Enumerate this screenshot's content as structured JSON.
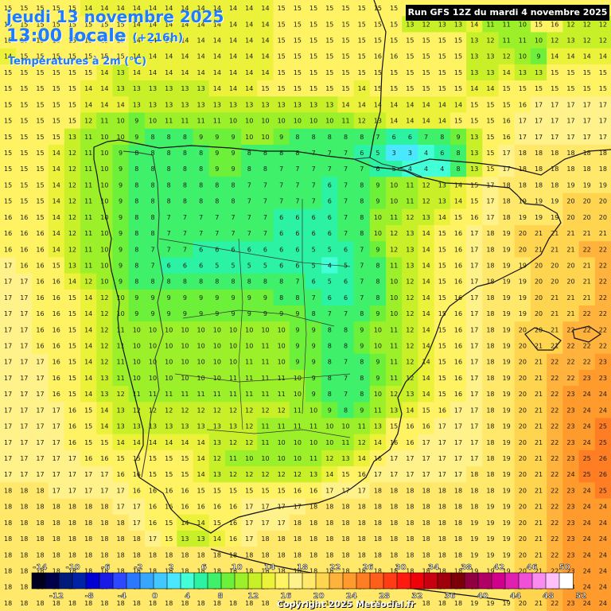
{
  "header": {
    "date": "jeudi 13 novembre 2025",
    "time": "13:00 locale",
    "lead": "(+216h)",
    "parameter": "Températures à 2m (°C)",
    "run": "Run GFS 12Z du mardi 4 novembre 2025"
  },
  "footer": {
    "copyright": "Copyright 2025 Meteociel.fr"
  },
  "legend": {
    "top_labels": [
      "-14",
      "-10",
      "-6",
      "-2",
      "2",
      "6",
      "10",
      "14",
      "18",
      "22",
      "26",
      "30",
      "34",
      "38",
      "42",
      "46",
      "50"
    ],
    "bottom_labels": [
      "-12",
      "-8",
      "-4",
      "0",
      "4",
      "8",
      "12",
      "16",
      "20",
      "24",
      "28",
      "32",
      "36",
      "40",
      "44",
      "48",
      "52"
    ],
    "colors": [
      "#00001e",
      "#00004a",
      "#001b7a",
      "#0022a6",
      "#0000d2",
      "#1a1ae6",
      "#2e48ff",
      "#2a78ff",
      "#36a6ff",
      "#42c8ff",
      "#4ae8ff",
      "#42ffd8",
      "#2cf2a4",
      "#3ef06a",
      "#6cf03a",
      "#9cf02a",
      "#c8f028",
      "#ecf23a",
      "#fff263",
      "#fff28a",
      "#ffe86a",
      "#ffd550",
      "#ffb23c",
      "#ff9a2c",
      "#ff7e24",
      "#ff5f1a",
      "#ff3c14",
      "#ff1a10",
      "#f00008",
      "#c80010",
      "#a0000c",
      "#7c0008",
      "#900040",
      "#b00066",
      "#d0008c",
      "#e020b0",
      "#f050d8",
      "#fa8cf0",
      "#ffc0fa",
      "#ffffff"
    ],
    "min": -15,
    "max": 51
  },
  "map": {
    "grid_rows": [
      [
        15,
        15,
        15,
        15,
        15,
        14,
        14,
        14,
        14,
        14,
        14,
        14,
        14,
        14,
        14,
        14,
        14,
        15,
        15,
        15,
        15,
        15,
        15,
        15,
        15,
        15,
        15,
        15,
        15,
        15,
        15,
        15,
        15,
        15,
        15,
        15,
        15,
        15
      ],
      [
        15,
        15,
        15,
        15,
        15,
        15,
        15,
        15,
        14,
        14,
        14,
        14,
        14,
        14,
        14,
        14,
        14,
        15,
        15,
        15,
        15,
        15,
        15,
        15,
        15,
        13,
        12,
        13,
        13,
        14,
        11,
        11,
        10,
        15,
        16,
        12,
        12,
        12
      ],
      [
        15,
        15,
        15,
        15,
        15,
        15,
        15,
        15,
        14,
        14,
        14,
        14,
        14,
        14,
        14,
        14,
        14,
        15,
        15,
        15,
        15,
        15,
        15,
        15,
        15,
        15,
        15,
        15,
        15,
        13,
        12,
        11,
        11,
        10,
        12,
        13,
        12,
        12
      ],
      [
        14,
        15,
        15,
        15,
        15,
        15,
        15,
        15,
        14,
        14,
        14,
        14,
        14,
        14,
        14,
        14,
        14,
        15,
        15,
        15,
        15,
        15,
        15,
        16,
        16,
        15,
        15,
        15,
        15,
        13,
        13,
        12,
        10,
        9,
        14,
        14,
        14,
        14
      ],
      [
        15,
        15,
        15,
        15,
        15,
        15,
        14,
        13,
        14,
        14,
        14,
        14,
        14,
        14,
        14,
        14,
        14,
        15,
        15,
        15,
        15,
        15,
        15,
        15,
        15,
        15,
        15,
        15,
        15,
        13,
        13,
        14,
        13,
        13,
        15,
        15,
        15,
        15
      ],
      [
        15,
        15,
        15,
        15,
        15,
        14,
        14,
        13,
        13,
        13,
        13,
        13,
        13,
        14,
        14,
        14,
        15,
        15,
        15,
        15,
        15,
        15,
        14,
        15,
        15,
        15,
        15,
        15,
        15,
        14,
        14,
        15,
        15,
        15,
        15,
        15,
        15,
        15
      ],
      [
        15,
        15,
        15,
        15,
        15,
        14,
        14,
        14,
        13,
        13,
        13,
        13,
        13,
        13,
        13,
        13,
        13,
        13,
        13,
        13,
        13,
        14,
        14,
        14,
        14,
        14,
        14,
        14,
        14,
        15,
        15,
        15,
        16,
        17,
        17,
        17,
        17,
        17
      ],
      [
        15,
        15,
        15,
        15,
        15,
        12,
        11,
        10,
        9,
        10,
        11,
        11,
        11,
        11,
        10,
        10,
        10,
        10,
        10,
        10,
        10,
        11,
        12,
        13,
        14,
        14,
        14,
        14,
        15,
        15,
        15,
        16,
        17,
        17,
        17,
        17,
        17,
        17
      ],
      [
        15,
        15,
        15,
        15,
        13,
        11,
        10,
        10,
        9,
        8,
        8,
        8,
        9,
        9,
        9,
        10,
        10,
        9,
        8,
        8,
        8,
        8,
        8,
        7,
        6,
        6,
        7,
        8,
        9,
        13,
        15,
        16,
        17,
        17,
        17,
        17,
        17,
        17
      ],
      [
        15,
        15,
        15,
        14,
        12,
        11,
        10,
        9,
        8,
        8,
        8,
        8,
        8,
        9,
        9,
        8,
        8,
        8,
        8,
        7,
        7,
        7,
        6,
        5,
        3,
        3,
        4,
        6,
        8,
        13,
        15,
        17,
        18,
        18,
        18,
        18,
        18,
        18
      ],
      [
        15,
        15,
        15,
        14,
        12,
        11,
        10,
        9,
        8,
        8,
        8,
        8,
        8,
        9,
        9,
        8,
        8,
        7,
        7,
        7,
        7,
        7,
        7,
        6,
        5,
        4,
        4,
        4,
        8,
        13,
        15,
        17,
        18,
        18,
        18,
        18,
        18,
        18
      ],
      [
        15,
        15,
        15,
        14,
        12,
        11,
        10,
        9,
        8,
        8,
        8,
        8,
        8,
        8,
        8,
        7,
        7,
        7,
        7,
        7,
        6,
        7,
        8,
        9,
        10,
        11,
        12,
        13,
        14,
        15,
        17,
        18,
        18,
        18,
        18,
        19,
        19,
        19
      ],
      [
        15,
        15,
        15,
        14,
        12,
        11,
        10,
        9,
        8,
        8,
        8,
        8,
        8,
        8,
        8,
        7,
        7,
        7,
        7,
        7,
        6,
        7,
        8,
        9,
        10,
        11,
        12,
        13,
        14,
        15,
        17,
        18,
        19,
        19,
        19,
        20,
        20,
        20
      ],
      [
        16,
        16,
        15,
        14,
        12,
        11,
        10,
        9,
        8,
        8,
        7,
        7,
        7,
        7,
        7,
        7,
        7,
        6,
        6,
        6,
        6,
        7,
        8,
        10,
        11,
        12,
        13,
        14,
        15,
        16,
        17,
        18,
        19,
        19,
        19,
        20,
        20,
        20
      ],
      [
        16,
        16,
        16,
        14,
        12,
        11,
        10,
        9,
        8,
        8,
        7,
        7,
        7,
        7,
        7,
        7,
        7,
        6,
        6,
        6,
        6,
        7,
        8,
        10,
        12,
        13,
        14,
        15,
        16,
        17,
        18,
        19,
        20,
        21,
        21,
        21,
        21,
        21
      ],
      [
        16,
        16,
        16,
        14,
        12,
        11,
        10,
        9,
        8,
        7,
        7,
        7,
        6,
        6,
        6,
        6,
        6,
        6,
        6,
        5,
        5,
        6,
        7,
        9,
        12,
        13,
        14,
        15,
        16,
        17,
        18,
        19,
        20,
        21,
        21,
        21,
        22,
        22
      ],
      [
        17,
        16,
        16,
        15,
        13,
        11,
        10,
        9,
        8,
        7,
        6,
        6,
        6,
        5,
        5,
        5,
        5,
        6,
        6,
        5,
        4,
        5,
        7,
        8,
        11,
        13,
        14,
        15,
        16,
        17,
        18,
        19,
        19,
        20,
        20,
        20,
        21,
        22
      ],
      [
        17,
        17,
        16,
        16,
        14,
        12,
        10,
        9,
        8,
        8,
        8,
        8,
        8,
        8,
        8,
        8,
        8,
        8,
        7,
        6,
        5,
        6,
        7,
        8,
        10,
        12,
        14,
        15,
        16,
        17,
        18,
        19,
        19,
        20,
        20,
        20,
        21,
        22
      ],
      [
        17,
        17,
        16,
        16,
        15,
        14,
        12,
        10,
        9,
        9,
        9,
        9,
        9,
        9,
        9,
        9,
        9,
        8,
        8,
        7,
        6,
        6,
        7,
        8,
        10,
        12,
        14,
        15,
        16,
        17,
        18,
        19,
        19,
        20,
        21,
        21,
        21,
        22
      ],
      [
        17,
        17,
        16,
        16,
        15,
        14,
        12,
        10,
        9,
        9,
        9,
        9,
        9,
        9,
        9,
        9,
        9,
        9,
        9,
        8,
        7,
        7,
        8,
        9,
        10,
        12,
        14,
        15,
        16,
        17,
        18,
        19,
        19,
        20,
        21,
        21,
        22,
        22
      ],
      [
        17,
        17,
        16,
        16,
        15,
        14,
        12,
        11,
        10,
        10,
        10,
        10,
        10,
        10,
        10,
        10,
        10,
        10,
        9,
        9,
        8,
        8,
        9,
        10,
        11,
        12,
        14,
        15,
        16,
        17,
        18,
        19,
        20,
        20,
        21,
        22,
        22,
        22
      ],
      [
        17,
        17,
        16,
        16,
        15,
        14,
        12,
        11,
        10,
        10,
        10,
        10,
        10,
        10,
        10,
        10,
        11,
        10,
        9,
        9,
        8,
        8,
        9,
        10,
        11,
        12,
        14,
        15,
        16,
        17,
        18,
        19,
        20,
        21,
        21,
        22,
        22,
        22
      ],
      [
        17,
        17,
        17,
        16,
        15,
        14,
        12,
        11,
        10,
        10,
        10,
        10,
        10,
        10,
        10,
        11,
        11,
        10,
        9,
        9,
        8,
        7,
        8,
        9,
        11,
        12,
        14,
        15,
        16,
        17,
        18,
        19,
        20,
        21,
        22,
        22,
        22,
        23
      ],
      [
        17,
        17,
        17,
        16,
        15,
        14,
        13,
        11,
        10,
        10,
        10,
        10,
        10,
        10,
        11,
        11,
        11,
        11,
        10,
        9,
        8,
        7,
        8,
        9,
        11,
        12,
        14,
        15,
        16,
        17,
        18,
        19,
        20,
        21,
        22,
        22,
        23,
        23
      ],
      [
        17,
        17,
        17,
        16,
        15,
        14,
        13,
        12,
        11,
        11,
        11,
        11,
        11,
        11,
        11,
        11,
        11,
        11,
        10,
        9,
        8,
        7,
        8,
        10,
        12,
        13,
        14,
        15,
        16,
        17,
        18,
        19,
        20,
        21,
        22,
        23,
        24,
        24
      ],
      [
        17,
        17,
        17,
        17,
        16,
        15,
        14,
        13,
        12,
        12,
        12,
        12,
        12,
        12,
        12,
        12,
        12,
        12,
        11,
        10,
        9,
        8,
        9,
        11,
        13,
        14,
        15,
        16,
        17,
        17,
        18,
        19,
        20,
        21,
        22,
        23,
        24,
        24
      ],
      [
        17,
        17,
        17,
        17,
        16,
        15,
        14,
        13,
        13,
        13,
        13,
        13,
        13,
        13,
        13,
        12,
        11,
        11,
        11,
        11,
        10,
        10,
        11,
        13,
        15,
        16,
        16,
        17,
        17,
        17,
        18,
        19,
        20,
        21,
        22,
        23,
        24,
        25
      ],
      [
        17,
        17,
        17,
        17,
        16,
        15,
        15,
        14,
        14,
        14,
        14,
        14,
        14,
        13,
        12,
        12,
        11,
        10,
        10,
        10,
        10,
        11,
        12,
        14,
        16,
        16,
        17,
        17,
        17,
        17,
        18,
        19,
        20,
        21,
        22,
        23,
        24,
        25
      ],
      [
        17,
        17,
        17,
        17,
        17,
        16,
        16,
        15,
        15,
        15,
        15,
        15,
        14,
        12,
        11,
        10,
        10,
        10,
        10,
        11,
        12,
        13,
        14,
        16,
        17,
        17,
        17,
        17,
        17,
        17,
        18,
        19,
        20,
        21,
        22,
        23,
        25,
        26
      ],
      [
        17,
        17,
        17,
        17,
        17,
        17,
        17,
        16,
        16,
        15,
        15,
        15,
        14,
        13,
        12,
        12,
        12,
        12,
        12,
        13,
        14,
        15,
        16,
        17,
        17,
        17,
        17,
        17,
        17,
        18,
        18,
        19,
        20,
        21,
        22,
        24,
        25,
        26
      ],
      [
        18,
        18,
        18,
        17,
        17,
        17,
        17,
        17,
        16,
        16,
        16,
        16,
        15,
        15,
        15,
        15,
        15,
        15,
        16,
        16,
        17,
        17,
        17,
        18,
        18,
        18,
        18,
        18,
        18,
        18,
        18,
        19,
        20,
        21,
        22,
        23,
        24,
        25
      ],
      [
        18,
        18,
        18,
        18,
        18,
        18,
        18,
        17,
        17,
        16,
        16,
        16,
        16,
        16,
        16,
        17,
        17,
        17,
        17,
        18,
        18,
        18,
        18,
        18,
        18,
        18,
        18,
        18,
        18,
        18,
        19,
        19,
        20,
        21,
        22,
        23,
        24,
        24
      ],
      [
        18,
        18,
        18,
        18,
        18,
        18,
        18,
        18,
        17,
        16,
        15,
        14,
        14,
        15,
        16,
        17,
        17,
        17,
        18,
        18,
        18,
        18,
        18,
        18,
        18,
        18,
        18,
        18,
        18,
        19,
        19,
        19,
        20,
        21,
        22,
        23,
        24,
        24
      ],
      [
        18,
        18,
        18,
        18,
        18,
        18,
        18,
        18,
        18,
        17,
        15,
        13,
        13,
        14,
        16,
        17,
        18,
        18,
        18,
        18,
        18,
        18,
        18,
        18,
        18,
        18,
        18,
        18,
        18,
        19,
        19,
        19,
        20,
        21,
        22,
        23,
        24,
        24
      ],
      [
        18,
        18,
        18,
        18,
        18,
        18,
        18,
        18,
        18,
        18,
        18,
        18,
        18,
        18,
        18,
        18,
        18,
        18,
        18,
        18,
        18,
        18,
        18,
        18,
        18,
        18,
        18,
        18,
        18,
        19,
        19,
        19,
        20,
        21,
        22,
        23,
        24,
        24
      ],
      [
        18,
        18,
        18,
        18,
        18,
        18,
        18,
        18,
        18,
        18,
        18,
        18,
        18,
        18,
        18,
        18,
        18,
        18,
        18,
        18,
        18,
        18,
        18,
        18,
        18,
        18,
        18,
        18,
        18,
        19,
        19,
        19,
        20,
        21,
        22,
        23,
        24,
        24
      ],
      [
        18,
        18,
        18,
        18,
        18,
        18,
        18,
        18,
        18,
        18,
        18,
        18,
        18,
        18,
        18,
        18,
        18,
        18,
        18,
        18,
        18,
        18,
        18,
        18,
        18,
        18,
        18,
        18,
        18,
        19,
        19,
        19,
        20,
        21,
        22,
        23,
        24,
        24
      ],
      [
        18,
        18,
        18,
        18,
        18,
        18,
        18,
        18,
        18,
        18,
        18,
        18,
        18,
        18,
        18,
        18,
        18,
        18,
        18,
        18,
        18,
        18,
        18,
        18,
        18,
        18,
        18,
        18,
        18,
        19,
        19,
        19,
        20,
        21,
        22,
        23,
        24,
        24
      ]
    ]
  }
}
